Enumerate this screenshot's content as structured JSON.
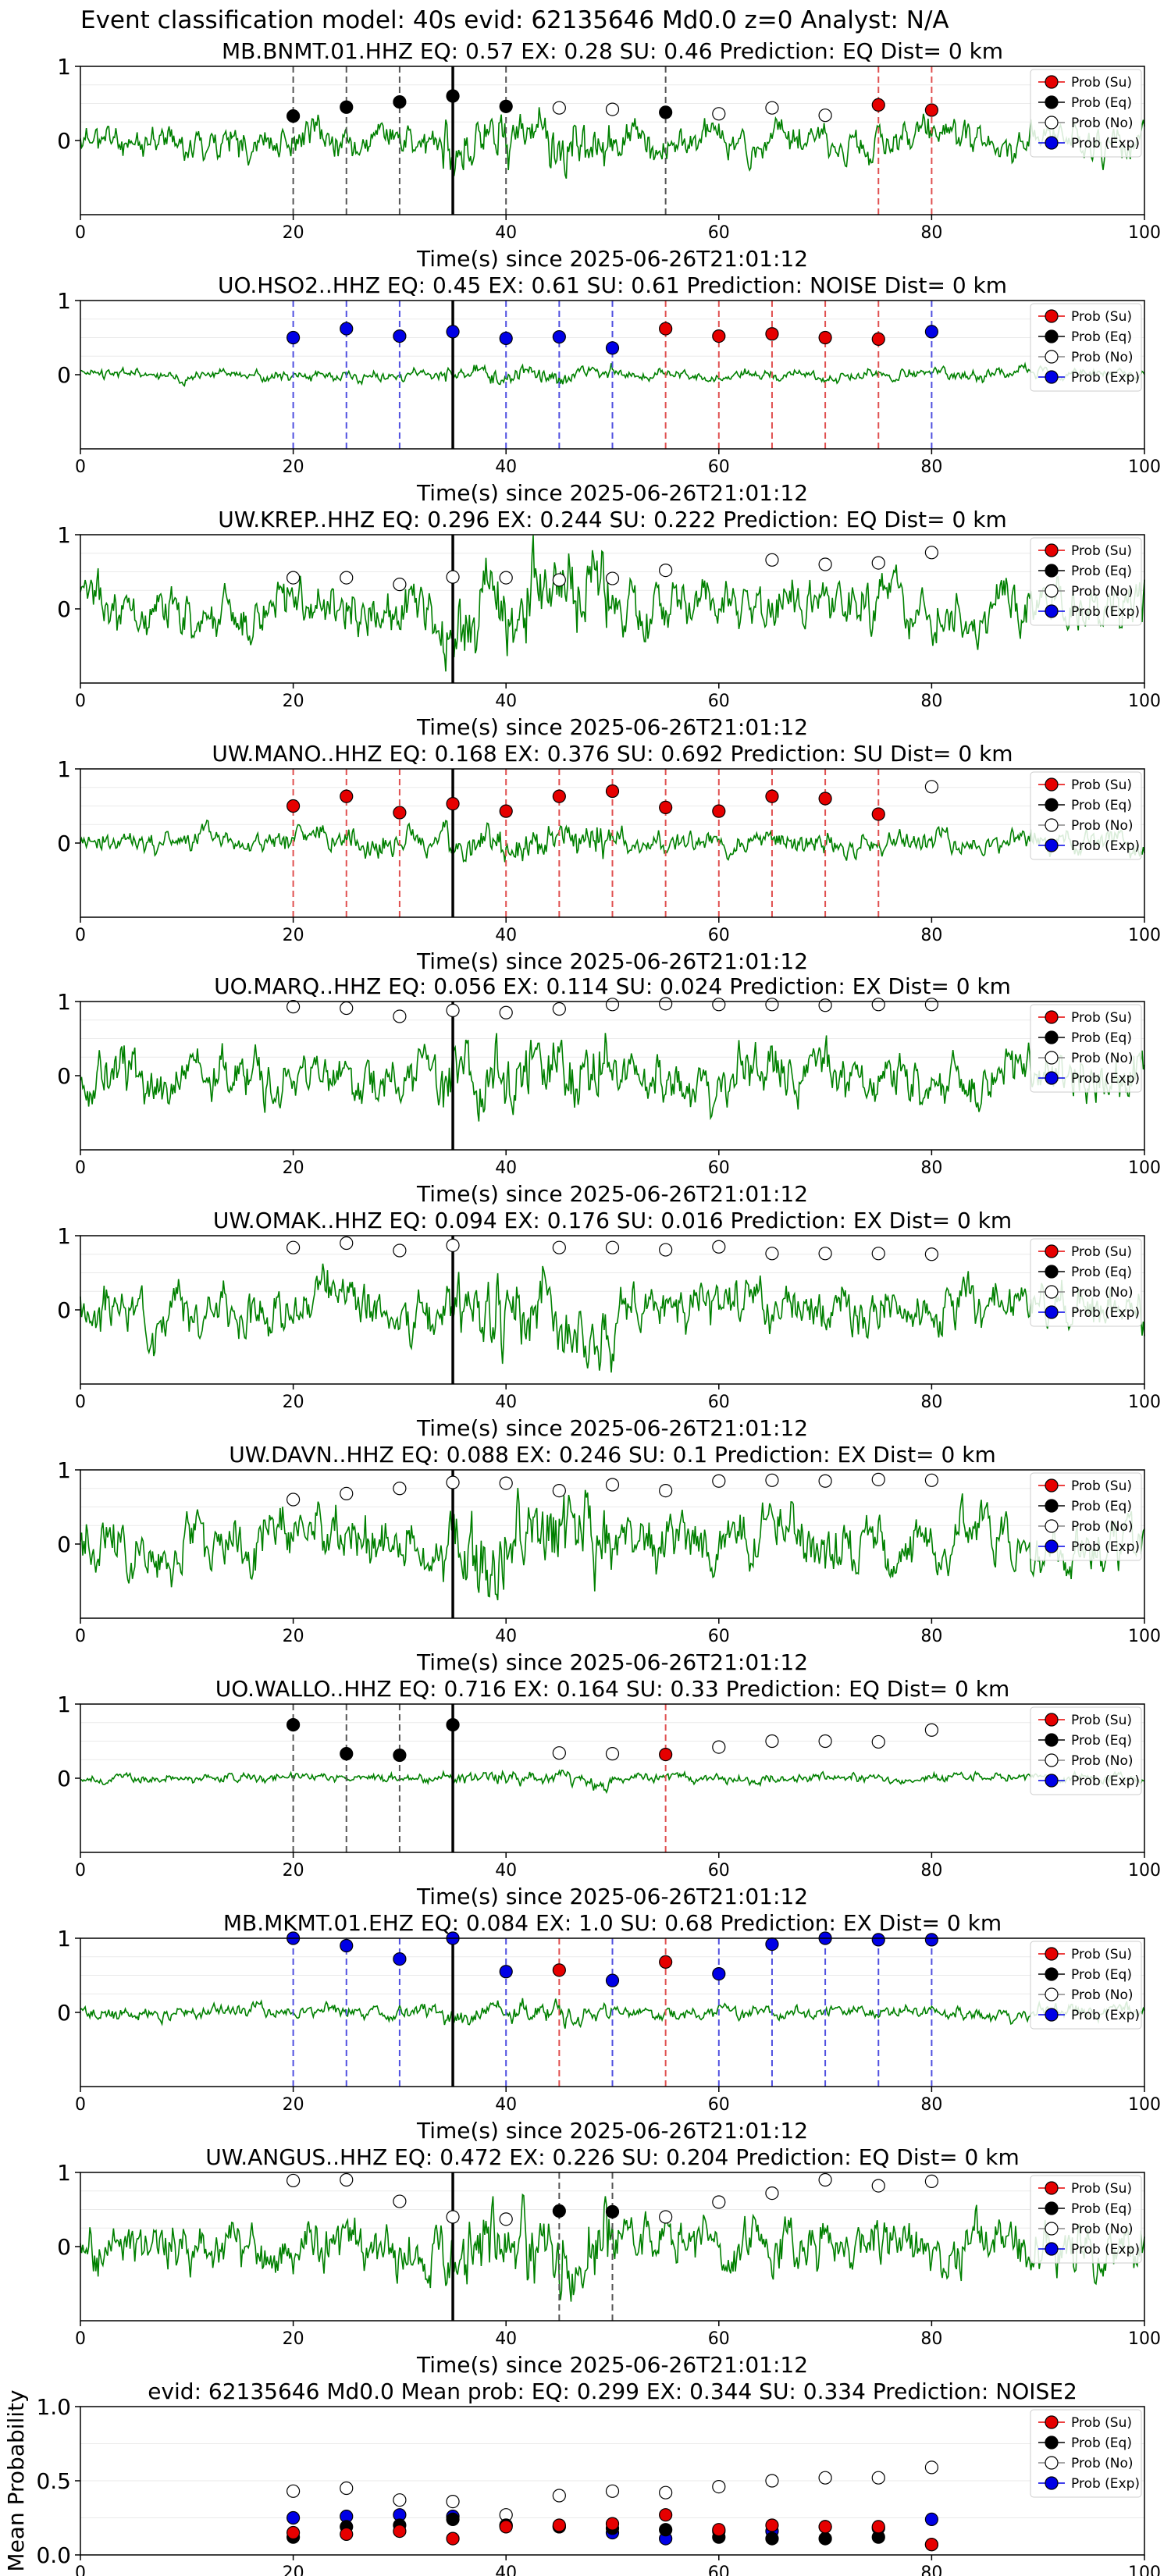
{
  "suptitle": "Event classification model: 40s evid: 62135646 Md0.0 z=0 Analyst: N/A",
  "xlabel": "Time(s) since 2025-06-26T21:01:12",
  "legend": [
    {
      "label": "Prob (Su)",
      "color": "#e60000"
    },
    {
      "label": "Prob (Eq)",
      "color": "#000000"
    },
    {
      "label": "Prob (No)",
      "color": "#ffffff"
    },
    {
      "label": "Prob (Exp)",
      "color": "#0000e6"
    }
  ],
  "chart_data": [
    {
      "type": "line",
      "title": "MB.BNMT.01.HHZ   EQ: 0.57  EX: 0.28  SU: 0.46   Prediction: EQ    Dist= 0 km",
      "seed": 11,
      "amp": 0.35,
      "pick": 35,
      "marks": [
        {
          "t": 20,
          "p": 0.33,
          "c": "eq"
        },
        {
          "t": 25,
          "p": 0.45,
          "c": "eq"
        },
        {
          "t": 30,
          "p": 0.52,
          "c": "eq"
        },
        {
          "t": 35,
          "p": 0.6,
          "c": "eq"
        },
        {
          "t": 40,
          "p": 0.46,
          "c": "eq"
        },
        {
          "t": 45,
          "p": 0.44,
          "c": "no"
        },
        {
          "t": 50,
          "p": 0.42,
          "c": "no"
        },
        {
          "t": 55,
          "p": 0.38,
          "c": "eq"
        },
        {
          "t": 60,
          "p": 0.36,
          "c": "no"
        },
        {
          "t": 65,
          "p": 0.44,
          "c": "no"
        },
        {
          "t": 70,
          "p": 0.34,
          "c": "no"
        },
        {
          "t": 75,
          "p": 0.48,
          "c": "su"
        },
        {
          "t": 80,
          "p": 0.41,
          "c": "su"
        }
      ]
    },
    {
      "type": "line",
      "title": "UO.HSO2..HHZ   EQ: 0.45  EX: 0.61  SU: 0.61   Prediction: NOISE    Dist= 0 km",
      "seed": 23,
      "amp": 0.12,
      "pick": 35,
      "marks": [
        {
          "t": 20,
          "p": 0.5,
          "c": "ex"
        },
        {
          "t": 25,
          "p": 0.62,
          "c": "ex"
        },
        {
          "t": 30,
          "p": 0.52,
          "c": "ex"
        },
        {
          "t": 35,
          "p": 0.58,
          "c": "ex"
        },
        {
          "t": 40,
          "p": 0.49,
          "c": "ex"
        },
        {
          "t": 45,
          "p": 0.51,
          "c": "ex"
        },
        {
          "t": 50,
          "p": 0.36,
          "c": "ex"
        },
        {
          "t": 55,
          "p": 0.62,
          "c": "su"
        },
        {
          "t": 60,
          "p": 0.52,
          "c": "su"
        },
        {
          "t": 65,
          "p": 0.55,
          "c": "su"
        },
        {
          "t": 70,
          "p": 0.5,
          "c": "su"
        },
        {
          "t": 75,
          "p": 0.48,
          "c": "su"
        },
        {
          "t": 80,
          "p": 0.58,
          "c": "ex"
        }
      ]
    },
    {
      "type": "line",
      "title": "UW.KREP..HHZ   EQ: 0.296  EX: 0.244  SU: 0.222   Prediction: EQ    Dist= 0 km",
      "seed": 37,
      "amp": 0.55,
      "pick": 35,
      "marks": [
        {
          "t": 20,
          "p": 0.42,
          "c": "no"
        },
        {
          "t": 25,
          "p": 0.42,
          "c": "no"
        },
        {
          "t": 30,
          "p": 0.33,
          "c": "no"
        },
        {
          "t": 35,
          "p": 0.43,
          "c": "no"
        },
        {
          "t": 40,
          "p": 0.42,
          "c": "no"
        },
        {
          "t": 45,
          "p": 0.39,
          "c": "no"
        },
        {
          "t": 50,
          "p": 0.41,
          "c": "no"
        },
        {
          "t": 55,
          "p": 0.52,
          "c": "no"
        },
        {
          "t": 65,
          "p": 0.66,
          "c": "no"
        },
        {
          "t": 70,
          "p": 0.6,
          "c": "no"
        },
        {
          "t": 75,
          "p": 0.62,
          "c": "no"
        },
        {
          "t": 80,
          "p": 0.76,
          "c": "no"
        }
      ]
    },
    {
      "type": "line",
      "title": "UW.MANO..HHZ   EQ: 0.168  EX: 0.376  SU: 0.692   Prediction: SU    Dist= 0 km",
      "seed": 41,
      "amp": 0.25,
      "pick": 35,
      "marks": [
        {
          "t": 20,
          "p": 0.5,
          "c": "su"
        },
        {
          "t": 25,
          "p": 0.63,
          "c": "su"
        },
        {
          "t": 30,
          "p": 0.41,
          "c": "su"
        },
        {
          "t": 35,
          "p": 0.53,
          "c": "su"
        },
        {
          "t": 40,
          "p": 0.43,
          "c": "su"
        },
        {
          "t": 45,
          "p": 0.63,
          "c": "su"
        },
        {
          "t": 50,
          "p": 0.7,
          "c": "su"
        },
        {
          "t": 55,
          "p": 0.48,
          "c": "su"
        },
        {
          "t": 60,
          "p": 0.43,
          "c": "su"
        },
        {
          "t": 65,
          "p": 0.63,
          "c": "su"
        },
        {
          "t": 70,
          "p": 0.6,
          "c": "su"
        },
        {
          "t": 75,
          "p": 0.39,
          "c": "su"
        },
        {
          "t": 80,
          "p": 0.76,
          "c": "no"
        }
      ]
    },
    {
      "type": "line",
      "title": "UO.MARQ..HHZ   EQ: 0.056  EX: 0.114  SU: 0.024   Prediction: EX    Dist= 0 km",
      "seed": 53,
      "amp": 0.55,
      "pick": 35,
      "marks": [
        {
          "t": 20,
          "p": 0.93,
          "c": "no"
        },
        {
          "t": 25,
          "p": 0.91,
          "c": "no"
        },
        {
          "t": 30,
          "p": 0.8,
          "c": "no"
        },
        {
          "t": 35,
          "p": 0.88,
          "c": "no"
        },
        {
          "t": 40,
          "p": 0.85,
          "c": "no"
        },
        {
          "t": 45,
          "p": 0.9,
          "c": "no"
        },
        {
          "t": 50,
          "p": 0.96,
          "c": "no"
        },
        {
          "t": 55,
          "p": 0.97,
          "c": "no"
        },
        {
          "t": 60,
          "p": 0.96,
          "c": "no"
        },
        {
          "t": 65,
          "p": 0.96,
          "c": "no"
        },
        {
          "t": 70,
          "p": 0.95,
          "c": "no"
        },
        {
          "t": 75,
          "p": 0.96,
          "c": "no"
        },
        {
          "t": 80,
          "p": 0.96,
          "c": "no"
        }
      ]
    },
    {
      "type": "line",
      "title": "UW.OMAK..HHZ   EQ: 0.094  EX: 0.176  SU: 0.016   Prediction: EX    Dist= 0 km",
      "seed": 67,
      "amp": 0.5,
      "pick": 35,
      "marks": [
        {
          "t": 20,
          "p": 0.84,
          "c": "no"
        },
        {
          "t": 25,
          "p": 0.9,
          "c": "no"
        },
        {
          "t": 30,
          "p": 0.8,
          "c": "no"
        },
        {
          "t": 35,
          "p": 0.87,
          "c": "no"
        },
        {
          "t": 45,
          "p": 0.84,
          "c": "no"
        },
        {
          "t": 50,
          "p": 0.84,
          "c": "no"
        },
        {
          "t": 55,
          "p": 0.81,
          "c": "no"
        },
        {
          "t": 60,
          "p": 0.85,
          "c": "no"
        },
        {
          "t": 65,
          "p": 0.76,
          "c": "no"
        },
        {
          "t": 70,
          "p": 0.76,
          "c": "no"
        },
        {
          "t": 75,
          "p": 0.76,
          "c": "no"
        },
        {
          "t": 80,
          "p": 0.75,
          "c": "no"
        }
      ]
    },
    {
      "type": "line",
      "title": "UW.DAVN..HHZ   EQ: 0.088  EX: 0.246  SU: 0.1   Prediction: EX    Dist= 0 km",
      "seed": 79,
      "amp": 0.6,
      "pick": 35,
      "marks": [
        {
          "t": 20,
          "p": 0.6,
          "c": "no"
        },
        {
          "t": 25,
          "p": 0.68,
          "c": "no"
        },
        {
          "t": 30,
          "p": 0.75,
          "c": "no"
        },
        {
          "t": 35,
          "p": 0.83,
          "c": "no"
        },
        {
          "t": 40,
          "p": 0.82,
          "c": "no"
        },
        {
          "t": 45,
          "p": 0.72,
          "c": "no"
        },
        {
          "t": 50,
          "p": 0.8,
          "c": "no"
        },
        {
          "t": 55,
          "p": 0.72,
          "c": "no"
        },
        {
          "t": 60,
          "p": 0.85,
          "c": "no"
        },
        {
          "t": 65,
          "p": 0.86,
          "c": "no"
        },
        {
          "t": 70,
          "p": 0.85,
          "c": "no"
        },
        {
          "t": 75,
          "p": 0.87,
          "c": "no"
        },
        {
          "t": 80,
          "p": 0.86,
          "c": "no"
        }
      ]
    },
    {
      "type": "line",
      "title": "UO.WALLO..HHZ   EQ: 0.716  EX: 0.164  SU: 0.33   Prediction: EQ    Dist= 0 km",
      "seed": 83,
      "amp": 0.1,
      "pick": 35,
      "marks": [
        {
          "t": 20,
          "p": 0.72,
          "c": "eq"
        },
        {
          "t": 25,
          "p": 0.33,
          "c": "eq"
        },
        {
          "t": 30,
          "p": 0.31,
          "c": "eq"
        },
        {
          "t": 35,
          "p": 0.72,
          "c": "eq"
        },
        {
          "t": 45,
          "p": 0.34,
          "c": "no"
        },
        {
          "t": 50,
          "p": 0.33,
          "c": "no"
        },
        {
          "t": 55,
          "p": 0.32,
          "c": "su"
        },
        {
          "t": 60,
          "p": 0.42,
          "c": "no"
        },
        {
          "t": 65,
          "p": 0.5,
          "c": "no"
        },
        {
          "t": 70,
          "p": 0.5,
          "c": "no"
        },
        {
          "t": 75,
          "p": 0.49,
          "c": "no"
        },
        {
          "t": 80,
          "p": 0.65,
          "c": "no"
        }
      ]
    },
    {
      "type": "line",
      "title": "MB.MKMT.01.EHZ   EQ: 0.084  EX: 1.0  SU: 0.68   Prediction: EX    Dist= 0 km",
      "seed": 97,
      "amp": 0.15,
      "pick": 35,
      "marks": [
        {
          "t": 20,
          "p": 1.0,
          "c": "ex"
        },
        {
          "t": 25,
          "p": 0.9,
          "c": "ex"
        },
        {
          "t": 30,
          "p": 0.72,
          "c": "ex"
        },
        {
          "t": 35,
          "p": 1.0,
          "c": "ex"
        },
        {
          "t": 40,
          "p": 0.55,
          "c": "ex"
        },
        {
          "t": 45,
          "p": 0.57,
          "c": "su"
        },
        {
          "t": 50,
          "p": 0.43,
          "c": "ex"
        },
        {
          "t": 55,
          "p": 0.68,
          "c": "su"
        },
        {
          "t": 60,
          "p": 0.52,
          "c": "ex"
        },
        {
          "t": 65,
          "p": 0.92,
          "c": "ex"
        },
        {
          "t": 70,
          "p": 1.0,
          "c": "ex"
        },
        {
          "t": 75,
          "p": 0.98,
          "c": "ex"
        },
        {
          "t": 80,
          "p": 0.98,
          "c": "ex"
        }
      ]
    },
    {
      "type": "line",
      "title": "UW.ANGUS..HHZ   EQ: 0.472  EX: 0.226  SU: 0.204   Prediction: EQ    Dist= 0 km",
      "seed": 101,
      "amp": 0.55,
      "pick": 35,
      "marks": [
        {
          "t": 20,
          "p": 0.89,
          "c": "no"
        },
        {
          "t": 25,
          "p": 0.9,
          "c": "no"
        },
        {
          "t": 30,
          "p": 0.61,
          "c": "no"
        },
        {
          "t": 35,
          "p": 0.4,
          "c": "no"
        },
        {
          "t": 40,
          "p": 0.37,
          "c": "no"
        },
        {
          "t": 45,
          "p": 0.48,
          "c": "eq"
        },
        {
          "t": 50,
          "p": 0.47,
          "c": "eq"
        },
        {
          "t": 55,
          "p": 0.4,
          "c": "no"
        },
        {
          "t": 60,
          "p": 0.6,
          "c": "no"
        },
        {
          "t": 65,
          "p": 0.72,
          "c": "no"
        },
        {
          "t": 70,
          "p": 0.9,
          "c": "no"
        },
        {
          "t": 75,
          "p": 0.82,
          "c": "no"
        },
        {
          "t": 80,
          "p": 0.88,
          "c": "no"
        }
      ]
    },
    {
      "type": "scatter",
      "title": "evid: 62135646  Md0.0   Mean prob:   EQ: 0.299  EX: 0.344  SU: 0.334   Prediction: NOISE2",
      "ylabel": "Mean Probability",
      "ylim": [
        0,
        1.0
      ],
      "x": [
        20,
        25,
        30,
        35,
        40,
        45,
        50,
        55,
        60,
        65,
        70,
        75,
        80
      ],
      "series": [
        {
          "name": "Prob (Su)",
          "values": [
            0.15,
            0.14,
            0.16,
            0.11,
            0.19,
            0.2,
            0.21,
            0.27,
            0.17,
            0.2,
            0.19,
            0.19,
            0.07
          ]
        },
        {
          "name": "Prob (Eq)",
          "values": [
            0.12,
            0.19,
            0.2,
            0.24,
            0.2,
            0.19,
            0.18,
            0.17,
            0.12,
            0.11,
            0.11,
            0.12,
            0.07
          ]
        },
        {
          "name": "Prob (No)",
          "values": [
            0.43,
            0.45,
            0.37,
            0.36,
            0.27,
            0.4,
            0.43,
            0.42,
            0.46,
            0.5,
            0.52,
            0.52,
            0.59
          ]
        },
        {
          "name": "Prob (Exp)",
          "values": [
            0.25,
            0.26,
            0.27,
            0.26,
            0.2,
            0.19,
            0.15,
            0.11,
            0.16,
            0.16,
            0.19,
            0.18,
            0.24
          ]
        }
      ]
    }
  ]
}
